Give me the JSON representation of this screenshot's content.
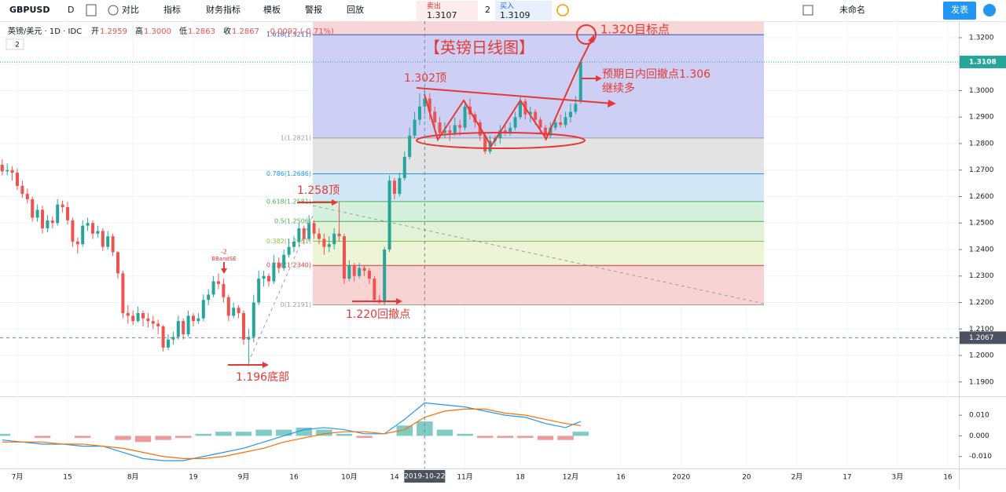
{
  "toolbar": {
    "symbol": "GBPUSD",
    "interval": "D",
    "buttons": [
      "对比",
      "指标",
      "财务指标",
      "模板",
      "警报",
      "回放"
    ],
    "sell_label": "卖出",
    "sell_price": "1.3107",
    "spread": "2",
    "buy_label": "买入",
    "buy_price": "1.3109",
    "layout_name": "未命名",
    "publish": "发表"
  },
  "legend": {
    "title": "英镑/美元 · 1D · IDC",
    "ohlc": [
      {
        "label": "开",
        "value": "1.2959"
      },
      {
        "label": "高",
        "value": "1.3000"
      },
      {
        "label": "低",
        "value": "1.2863"
      },
      {
        "label": "收",
        "value": "1.2867"
      }
    ],
    "change": "-0.0092 (-0.71%)",
    "indicator_count": "2"
  },
  "drawings": {
    "title": "【英镑日线图】",
    "target": "1.320目标点",
    "pullback": "预期日内回撤点1.306",
    "pullback_note": "继续多",
    "top_1302": "1.302顶",
    "top_1258": "1.258顶",
    "pullback_1220": "1.220回撤点",
    "bottom_1196": "1.196底部",
    "signal_value": "-2",
    "signal_name": "BBandSE"
  },
  "chart_data": {
    "type": "candlestick",
    "up_color": "#26a69a",
    "down_color": "#ef5350",
    "grid": true,
    "xlim": [
      -0.44,
      190.2
    ],
    "ylim": [
      1.1846,
      1.3262
    ],
    "xticks": [
      {
        "value": 3,
        "label": "7月"
      },
      {
        "value": 13,
        "label": "15"
      },
      {
        "value": 26,
        "label": "8月"
      },
      {
        "value": 38,
        "label": "19"
      },
      {
        "value": 48,
        "label": "9月"
      },
      {
        "value": 58,
        "label": "16"
      },
      {
        "value": 69,
        "label": "10月"
      },
      {
        "value": 78,
        "label": "14"
      },
      {
        "value": 92,
        "label": "11月"
      },
      {
        "value": 103,
        "label": "18"
      },
      {
        "value": 113,
        "label": "12月"
      },
      {
        "value": 123,
        "label": "16"
      },
      {
        "value": 135,
        "label": "2020"
      },
      {
        "value": 148,
        "label": "20"
      },
      {
        "value": 158,
        "label": "2月"
      },
      {
        "value": 168,
        "label": "17"
      },
      {
        "value": 178,
        "label": "3月"
      },
      {
        "value": 188,
        "label": "16"
      }
    ],
    "yticks": [
      {
        "value": 1.32,
        "label": "1.3200"
      },
      {
        "value": 1.31,
        "label": "1.3100"
      },
      {
        "value": 1.3,
        "label": "1.3000"
      },
      {
        "value": 1.29,
        "label": "1.2900"
      },
      {
        "value": 1.28,
        "label": "1.2800"
      },
      {
        "value": 1.27,
        "label": "1.2700"
      },
      {
        "value": 1.26,
        "label": "1.2600"
      },
      {
        "value": 1.25,
        "label": "1.2500"
      },
      {
        "value": 1.24,
        "label": "1.2400"
      },
      {
        "value": 1.23,
        "label": "1.2300"
      },
      {
        "value": 1.22,
        "label": "1.2200"
      },
      {
        "value": 1.21,
        "label": "1.2100"
      },
      {
        "value": 1.2,
        "label": "1.2000"
      },
      {
        "value": 1.19,
        "label": "1.1900"
      }
    ],
    "candles": [
      [
        1.272,
        1.274,
        1.268,
        1.2695
      ],
      [
        1.2695,
        1.2725,
        1.268,
        1.27
      ],
      [
        1.27,
        1.2715,
        1.266,
        1.269
      ],
      [
        1.269,
        1.2705,
        1.2625,
        1.264
      ],
      [
        1.264,
        1.266,
        1.2595,
        1.261
      ],
      [
        1.261,
        1.263,
        1.2575,
        1.259
      ],
      [
        1.259,
        1.26,
        1.2505,
        1.252
      ],
      [
        1.252,
        1.257,
        1.2505,
        1.255
      ],
      [
        1.255,
        1.2565,
        1.246,
        1.248
      ],
      [
        1.248,
        1.253,
        1.2465,
        1.251
      ],
      [
        1.251,
        1.2525,
        1.248,
        1.25
      ],
      [
        1.25,
        1.259,
        1.249,
        1.257
      ],
      [
        1.257,
        1.2585,
        1.254,
        1.256
      ],
      [
        1.256,
        1.258,
        1.2495,
        1.251
      ],
      [
        1.251,
        1.252,
        1.241,
        1.243
      ],
      [
        1.243,
        1.2445,
        1.2385,
        1.242
      ],
      [
        1.242,
        1.251,
        1.241,
        1.249
      ],
      [
        1.249,
        1.252,
        1.247,
        1.25
      ],
      [
        1.25,
        1.251,
        1.244,
        1.246
      ],
      [
        1.246,
        1.249,
        1.2445,
        1.247
      ],
      [
        1.247,
        1.248,
        1.2395,
        1.241
      ],
      [
        1.241,
        1.247,
        1.24,
        1.245
      ],
      [
        1.245,
        1.246,
        1.2375,
        1.239
      ],
      [
        1.239,
        1.2395,
        1.229,
        1.231
      ],
      [
        1.231,
        1.232,
        1.214,
        1.216
      ],
      [
        1.216,
        1.219,
        1.212,
        1.215
      ],
      [
        1.215,
        1.217,
        1.2115,
        1.213
      ],
      [
        1.213,
        1.2185,
        1.2125,
        1.216
      ],
      [
        1.216,
        1.217,
        1.211,
        1.214
      ],
      [
        1.214,
        1.216,
        1.2105,
        1.213
      ],
      [
        1.213,
        1.215,
        1.21,
        1.212
      ],
      [
        1.212,
        1.2135,
        1.208,
        1.211
      ],
      [
        1.211,
        1.2115,
        1.2015,
        1.203
      ],
      [
        1.203,
        1.208,
        1.202,
        1.206
      ],
      [
        1.206,
        1.209,
        1.204,
        1.207
      ],
      [
        1.207,
        1.215,
        1.206,
        1.213
      ],
      [
        1.213,
        1.214,
        1.206,
        1.208
      ],
      [
        1.208,
        1.217,
        1.207,
        1.215
      ],
      [
        1.215,
        1.216,
        1.211,
        1.213
      ],
      [
        1.213,
        1.216,
        1.212,
        1.214
      ],
      [
        1.214,
        1.223,
        1.213,
        1.221
      ],
      [
        1.221,
        1.225,
        1.219,
        1.223
      ],
      [
        1.223,
        1.23,
        1.222,
        1.228
      ],
      [
        1.228,
        1.231,
        1.225,
        1.227
      ],
      [
        1.227,
        1.229,
        1.22,
        1.222
      ],
      [
        1.222,
        1.223,
        1.213,
        1.215
      ],
      [
        1.215,
        1.22,
        1.214,
        1.218
      ],
      [
        1.218,
        1.219,
        1.214,
        1.216
      ],
      [
        1.216,
        1.217,
        1.204,
        1.206
      ],
      [
        1.206,
        1.21,
        1.1959,
        1.207
      ],
      [
        1.207,
        1.223,
        1.205,
        1.22
      ],
      [
        1.22,
        1.232,
        1.219,
        1.229
      ],
      [
        1.229,
        1.232,
        1.226,
        1.23
      ],
      [
        1.23,
        1.231,
        1.226,
        1.228
      ],
      [
        1.228,
        1.238,
        1.227,
        1.235
      ],
      [
        1.235,
        1.237,
        1.231,
        1.233
      ],
      [
        1.233,
        1.24,
        1.232,
        1.238
      ],
      [
        1.238,
        1.244,
        1.237,
        1.241
      ],
      [
        1.241,
        1.245,
        1.239,
        1.243
      ],
      [
        1.243,
        1.25,
        1.241,
        1.248
      ],
      [
        1.248,
        1.249,
        1.242,
        1.244
      ],
      [
        1.244,
        1.253,
        1.243,
        1.25
      ],
      [
        1.25,
        1.251,
        1.244,
        1.246
      ],
      [
        1.246,
        1.248,
        1.242,
        1.244
      ],
      [
        1.244,
        1.246,
        1.238,
        1.241
      ],
      [
        1.241,
        1.245,
        1.239,
        1.242
      ],
      [
        1.242,
        1.248,
        1.24,
        1.246
      ],
      [
        1.246,
        1.258,
        1.243,
        1.245
      ],
      [
        1.245,
        1.246,
        1.227,
        1.229
      ],
      [
        1.229,
        1.236,
        1.228,
        1.234
      ],
      [
        1.234,
        1.235,
        1.228,
        1.23
      ],
      [
        1.23,
        1.235,
        1.229,
        1.233
      ],
      [
        1.233,
        1.234,
        1.23,
        1.232
      ],
      [
        1.232,
        1.233,
        1.227,
        1.229
      ],
      [
        1.229,
        1.23,
        1.22,
        1.221
      ],
      [
        1.221,
        1.223,
        1.2195,
        1.22
      ],
      [
        1.22,
        1.241,
        1.219,
        1.24
      ],
      [
        1.24,
        1.268,
        1.239,
        1.266
      ],
      [
        1.266,
        1.267,
        1.259,
        1.261
      ],
      [
        1.261,
        1.269,
        1.26,
        1.267
      ],
      [
        1.267,
        1.277,
        1.266,
        1.275
      ],
      [
        1.275,
        1.286,
        1.274,
        1.283
      ],
      [
        1.283,
        1.292,
        1.282,
        1.289
      ],
      [
        1.289,
        1.299,
        1.287,
        1.294
      ],
      [
        1.294,
        1.301,
        1.291,
        1.297
      ],
      [
        1.297,
        1.299,
        1.289,
        1.292
      ],
      [
        1.292,
        1.294,
        1.285,
        1.288
      ],
      [
        1.288,
        1.29,
        1.282,
        1.284
      ],
      [
        1.284,
        1.288,
        1.282,
        1.285
      ],
      [
        1.285,
        1.287,
        1.281,
        1.284
      ],
      [
        1.284,
        1.29,
        1.283,
        1.287
      ],
      [
        1.287,
        1.289,
        1.283,
        1.286
      ],
      [
        1.286,
        1.296,
        1.285,
        1.294
      ],
      [
        1.294,
        1.297,
        1.289,
        1.291
      ],
      [
        1.291,
        1.292,
        1.286,
        1.288
      ],
      [
        1.288,
        1.289,
        1.281,
        1.283
      ],
      [
        1.283,
        1.284,
        1.276,
        1.277
      ],
      [
        1.277,
        1.283,
        1.276,
        1.281
      ],
      [
        1.281,
        1.283,
        1.279,
        1.282
      ],
      [
        1.282,
        1.287,
        1.28,
        1.285
      ],
      [
        1.285,
        1.287,
        1.283,
        1.284
      ],
      [
        1.284,
        1.288,
        1.283,
        1.286
      ],
      [
        1.286,
        1.292,
        1.285,
        1.29
      ],
      [
        1.29,
        1.298,
        1.289,
        1.296
      ],
      [
        1.296,
        1.297,
        1.289,
        1.291
      ],
      [
        1.291,
        1.294,
        1.288,
        1.292
      ],
      [
        1.292,
        1.293,
        1.287,
        1.289
      ],
      [
        1.289,
        1.29,
        1.284,
        1.286
      ],
      [
        1.286,
        1.287,
        1.281,
        1.283
      ],
      [
        1.283,
        1.288,
        1.282,
        1.286
      ],
      [
        1.286,
        1.29,
        1.285,
        1.288
      ],
      [
        1.288,
        1.291,
        1.286,
        1.287
      ],
      [
        1.287,
        1.292,
        1.286,
        1.29
      ],
      [
        1.29,
        1.295,
        1.288,
        1.292
      ],
      [
        1.292,
        1.298,
        1.291,
        1.295
      ],
      [
        1.2959,
        1.3115,
        1.295,
        1.3108
      ]
    ],
    "fib_levels": [
      {
        "label": "1.618(1.3211)",
        "value": 1.3211,
        "line": "#3f51b5",
        "band": "#cdd0f4"
      },
      {
        "label": "1(1.2821)",
        "value": 1.2821,
        "line": "#9e9e9e",
        "band": "#e3e3e3"
      },
      {
        "label": "0.786(1.2686)",
        "value": 1.2686,
        "line": "#2196f3",
        "band": "#d2e7f5"
      },
      {
        "label": "0.618(1.2581)",
        "value": 1.2581,
        "line": "#4caf50",
        "band": "#d5f0dc"
      },
      {
        "label": "0.5(1.2506)",
        "value": 1.2506,
        "line": "#4caf50",
        "band": "#e2f2d9"
      },
      {
        "label": "0.382(1.2431)",
        "value": 1.2431,
        "line": "#8bc34a",
        "band": "#eef4d6"
      },
      {
        "label": "0.236(1.2340)",
        "value": 1.234,
        "line": "#e53935",
        "band": "#f7d3d3"
      },
      {
        "label": "0(1.2191)",
        "value": 1.2191,
        "line": "#9e9e9e",
        "band": null
      }
    ],
    "last_price": {
      "value": 1.3108,
      "label": "1.3108",
      "color": "#26a69a"
    },
    "crosshair": {
      "value": 1.2067,
      "label": "1.2067",
      "index": 84,
      "date_label": "2019-10-22"
    },
    "macd": {
      "ylim": [
        -0.0158,
        0.0188
      ],
      "yticks": [
        {
          "value": 0.01,
          "label": "0.010"
        },
        {
          "value": 0,
          "label": "0.000"
        },
        {
          "value": -0.01,
          "label": "-0.010"
        }
      ],
      "x": [
        0,
        4,
        8,
        12,
        16,
        20,
        24,
        28,
        32,
        36,
        40,
        44,
        48,
        52,
        56,
        60,
        64,
        68,
        72,
        76,
        80,
        84,
        88,
        92,
        96,
        100,
        104,
        108,
        112,
        115
      ],
      "macd": [
        -0.002,
        -0.003,
        -0.004,
        -0.004,
        -0.005,
        -0.005,
        -0.008,
        -0.011,
        -0.012,
        -0.012,
        -0.01,
        -0.008,
        -0.006,
        -0.003,
        0.0,
        0.003,
        0.004,
        0.003,
        0.001,
        0.001,
        0.008,
        0.016,
        0.015,
        0.014,
        0.012,
        0.01,
        0.009,
        0.006,
        0.004,
        0.007
      ],
      "signal": [
        -0.003,
        -0.003,
        -0.003,
        -0.004,
        -0.004,
        -0.005,
        -0.006,
        -0.008,
        -0.01,
        -0.011,
        -0.011,
        -0.01,
        -0.008,
        -0.006,
        -0.003,
        -0.001,
        0.001,
        0.002,
        0.002,
        0.001,
        0.003,
        0.009,
        0.012,
        0.013,
        0.013,
        0.011,
        0.01,
        0.008,
        0.006,
        0.005
      ],
      "histogram": [
        0.001,
        0.0,
        -0.001,
        0.0,
        -0.001,
        0.0,
        -0.002,
        -0.003,
        -0.002,
        -0.001,
        0.001,
        0.002,
        0.002,
        0.003,
        0.003,
        0.004,
        0.003,
        0.001,
        -0.001,
        0.0,
        0.005,
        0.007,
        0.003,
        0.001,
        -0.001,
        -0.001,
        -0.001,
        -0.002,
        -0.002,
        0.002
      ],
      "macd_color": "#2196f3",
      "signal_color": "#ff6d00",
      "pos_color": "#80cbc4",
      "neg_color": "#ef9a9a"
    }
  }
}
